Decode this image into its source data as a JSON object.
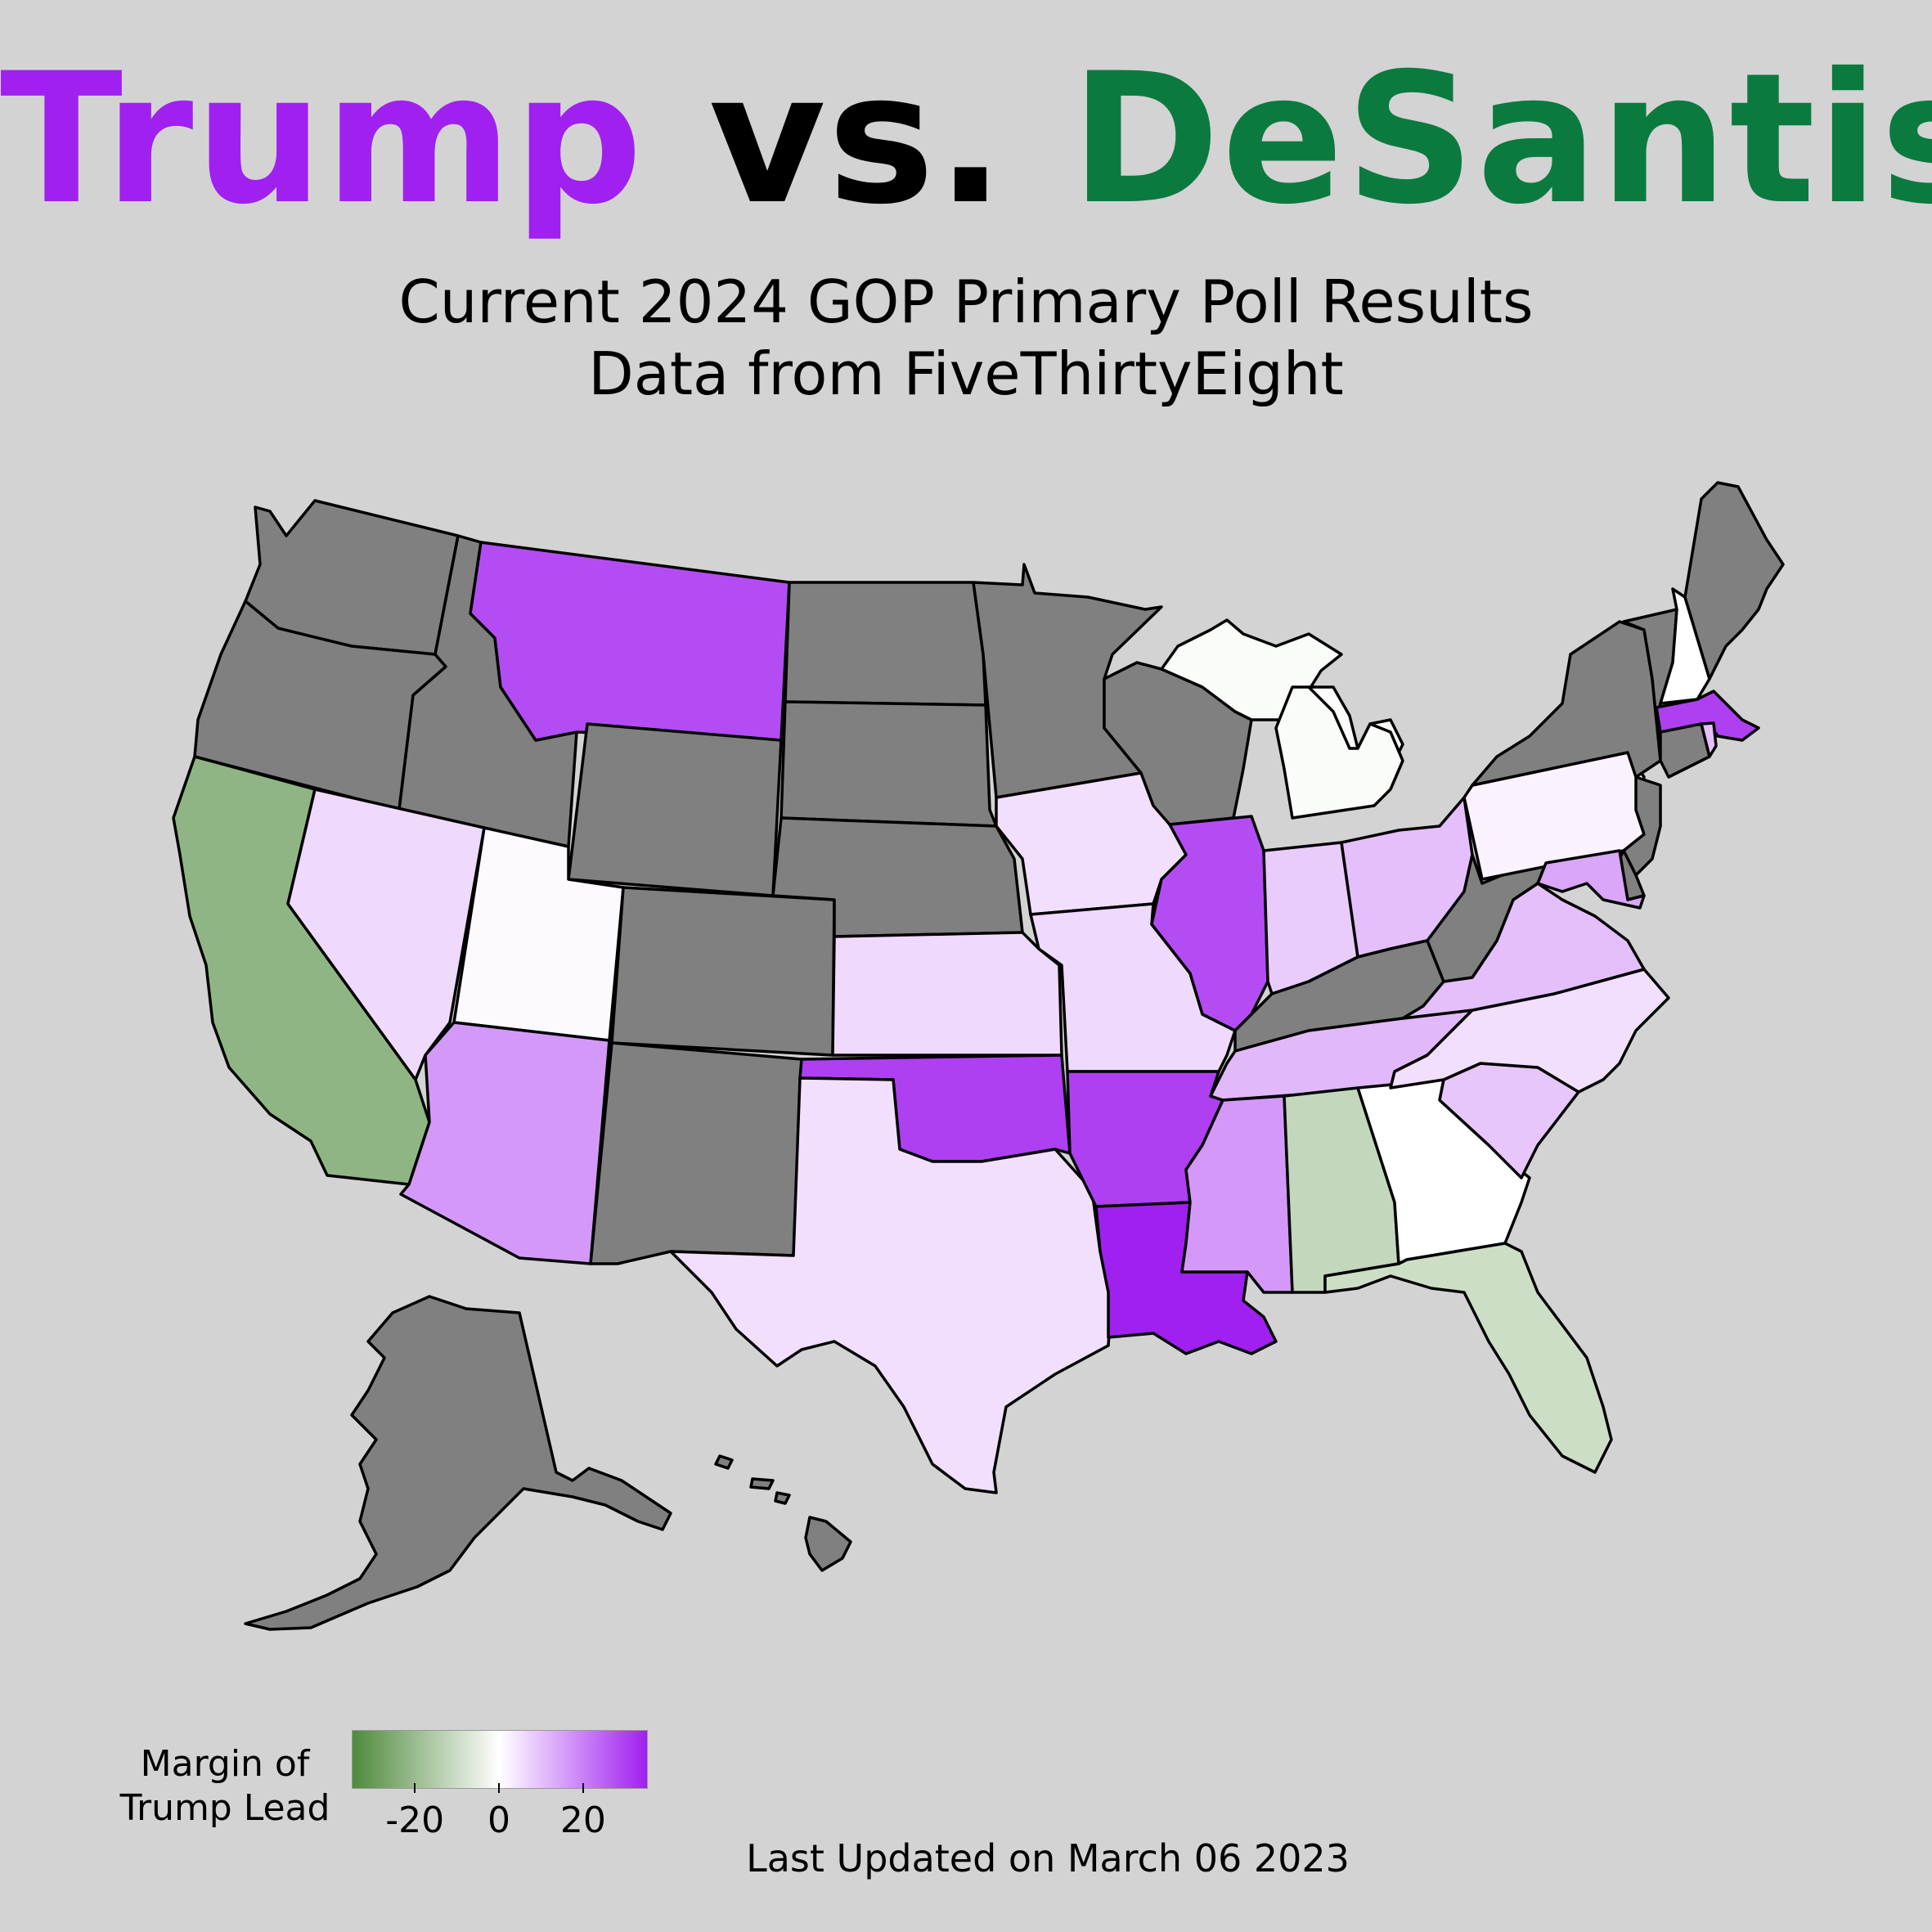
{
  "title": {
    "trump": "Trump",
    "vs": "vs.",
    "desantis": "DeSantis",
    "trump_color": "#a020f0",
    "desantis_color": "#0b7a3e"
  },
  "subtitle": {
    "line1": "Current 2024 GOP Primary Poll Results",
    "line2": "Data from FiveThirtyEight"
  },
  "map": {
    "no_data_color": "#808080",
    "scale": "diverging green-white-purple",
    "states": [
      {
        "name": "Washington",
        "margin": null
      },
      {
        "name": "Oregon",
        "margin": null
      },
      {
        "name": "California",
        "margin": -22
      },
      {
        "name": "Idaho",
        "margin": null
      },
      {
        "name": "Nevada",
        "margin": 6
      },
      {
        "name": "Montana",
        "margin": 28
      },
      {
        "name": "Wyoming",
        "margin": null
      },
      {
        "name": "Utah",
        "margin": 1
      },
      {
        "name": "Arizona",
        "margin": 16
      },
      {
        "name": "Colorado",
        "margin": null
      },
      {
        "name": "New Mexico",
        "margin": null
      },
      {
        "name": "North Dakota",
        "margin": null
      },
      {
        "name": "South Dakota",
        "margin": null
      },
      {
        "name": "Nebraska",
        "margin": null
      },
      {
        "name": "Kansas",
        "margin": 6
      },
      {
        "name": "Oklahoma",
        "margin": 30
      },
      {
        "name": "Texas",
        "margin": 5
      },
      {
        "name": "Minnesota",
        "margin": null
      },
      {
        "name": "Iowa",
        "margin": 5
      },
      {
        "name": "Missouri",
        "margin": 6
      },
      {
        "name": "Arkansas",
        "margin": 30
      },
      {
        "name": "Louisiana",
        "margin": 40
      },
      {
        "name": "Wisconsin",
        "margin": null
      },
      {
        "name": "Illinois",
        "margin": 28
      },
      {
        "name": "Michigan",
        "margin": -1
      },
      {
        "name": "Indiana",
        "margin": 8
      },
      {
        "name": "Ohio",
        "margin": 10
      },
      {
        "name": "Kentucky",
        "margin": null
      },
      {
        "name": "Tennessee",
        "margin": 11
      },
      {
        "name": "Mississippi",
        "margin": 16
      },
      {
        "name": "Alabama",
        "margin": -12
      },
      {
        "name": "Georgia",
        "margin": 0
      },
      {
        "name": "Florida",
        "margin": -10
      },
      {
        "name": "South Carolina",
        "margin": 9
      },
      {
        "name": "North Carolina",
        "margin": 5
      },
      {
        "name": "Virginia",
        "margin": 10
      },
      {
        "name": "West Virginia",
        "margin": null
      },
      {
        "name": "Pennsylvania",
        "margin": 2
      },
      {
        "name": "New York",
        "margin": null
      },
      {
        "name": "Vermont",
        "margin": null
      },
      {
        "name": "New Hampshire",
        "margin": 0
      },
      {
        "name": "Maine",
        "margin": null
      },
      {
        "name": "Massachusetts",
        "margin": 30
      },
      {
        "name": "Connecticut",
        "margin": null
      },
      {
        "name": "Rhode Island",
        "margin": 10
      },
      {
        "name": "New Jersey",
        "margin": null
      },
      {
        "name": "Maryland",
        "margin": 14
      },
      {
        "name": "Delaware",
        "margin": null
      },
      {
        "name": "Alaska",
        "margin": null
      },
      {
        "name": "Hawaii",
        "margin": null
      }
    ]
  },
  "legend": {
    "title_line1": "Margin of",
    "title_line2": "Trump Lead",
    "ticks": [
      "-20",
      "0",
      "20"
    ],
    "range": [
      -35,
      35
    ],
    "colors": [
      "#4f8a3c",
      "#ffffff",
      "#a020f0"
    ]
  },
  "updated": "Last Updated on  March 06 2023"
}
